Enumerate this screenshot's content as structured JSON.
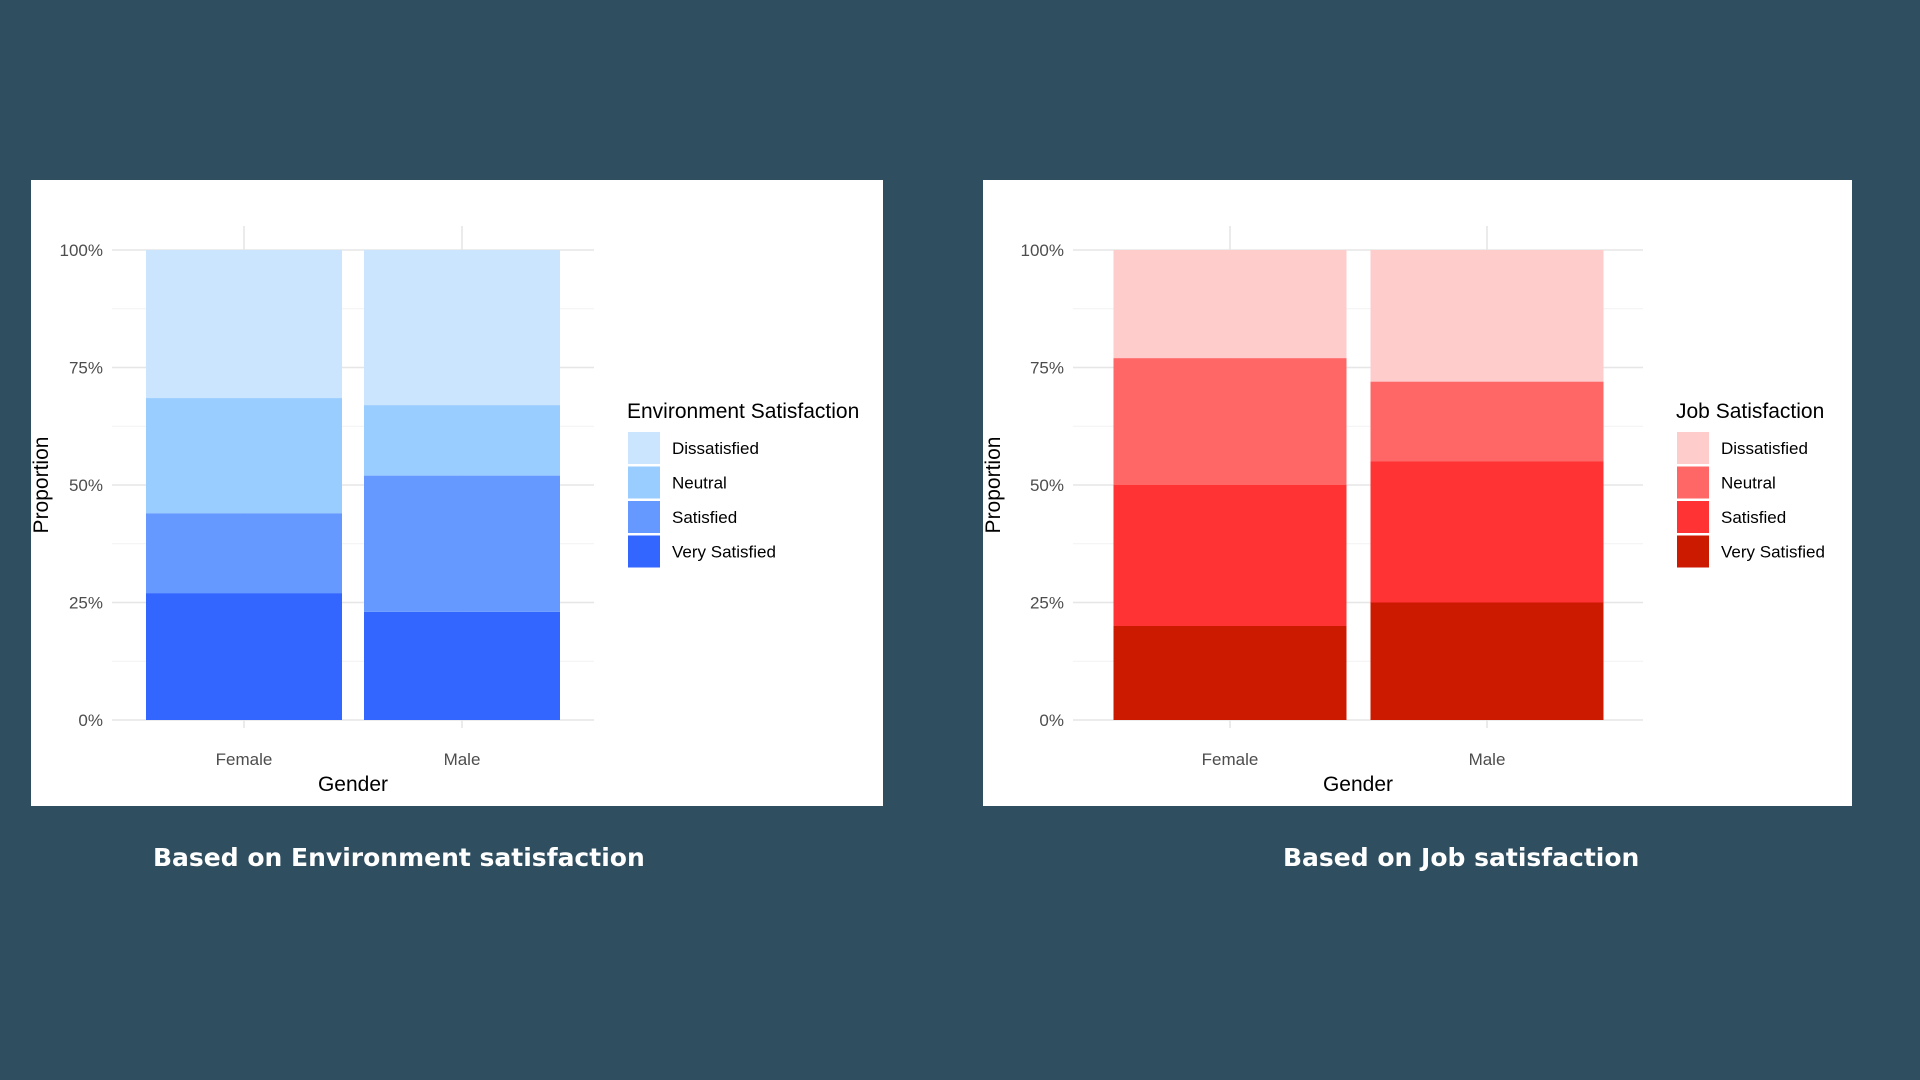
{
  "background_color": "#2f4f60",
  "captions": {
    "environment": "Based on Environment satisfaction",
    "job": "Based on Job satisfaction"
  },
  "chart_data": [
    {
      "type": "bar",
      "stacked": true,
      "xlabel": "Gender",
      "ylabel": "Proportion",
      "categories": [
        "Female",
        "Male"
      ],
      "y_ticks": [
        "0%",
        "25%",
        "50%",
        "75%",
        "100%"
      ],
      "ylim": [
        0,
        1
      ],
      "legend_title": "Environment Satisfaction",
      "legend_position": "right",
      "grid": true,
      "series": [
        {
          "name": "Very Satisfied",
          "color": "#3366ff",
          "values": [
            0.27,
            0.23
          ]
        },
        {
          "name": "Satisfied",
          "color": "#6699ff",
          "values": [
            0.17,
            0.29
          ]
        },
        {
          "name": "Neutral",
          "color": "#99ccff",
          "values": [
            0.245,
            0.15
          ]
        },
        {
          "name": "Dissatisfied",
          "color": "#cce5ff",
          "values": [
            0.315,
            0.33
          ]
        }
      ]
    },
    {
      "type": "bar",
      "stacked": true,
      "xlabel": "Gender",
      "ylabel": "Proportion",
      "categories": [
        "Female",
        "Male"
      ],
      "y_ticks": [
        "0%",
        "25%",
        "50%",
        "75%",
        "100%"
      ],
      "ylim": [
        0,
        1
      ],
      "legend_title": "Job Satisfaction",
      "legend_position": "right",
      "grid": true,
      "series": [
        {
          "name": "Very Satisfied",
          "color": "#cc1a00",
          "values": [
            0.2,
            0.25
          ]
        },
        {
          "name": "Satisfied",
          "color": "#ff3333",
          "values": [
            0.3,
            0.3
          ]
        },
        {
          "name": "Neutral",
          "color": "#ff6666",
          "values": [
            0.27,
            0.17
          ]
        },
        {
          "name": "Dissatisfied",
          "color": "#ffcccc",
          "values": [
            0.23,
            0.28
          ]
        }
      ]
    }
  ]
}
